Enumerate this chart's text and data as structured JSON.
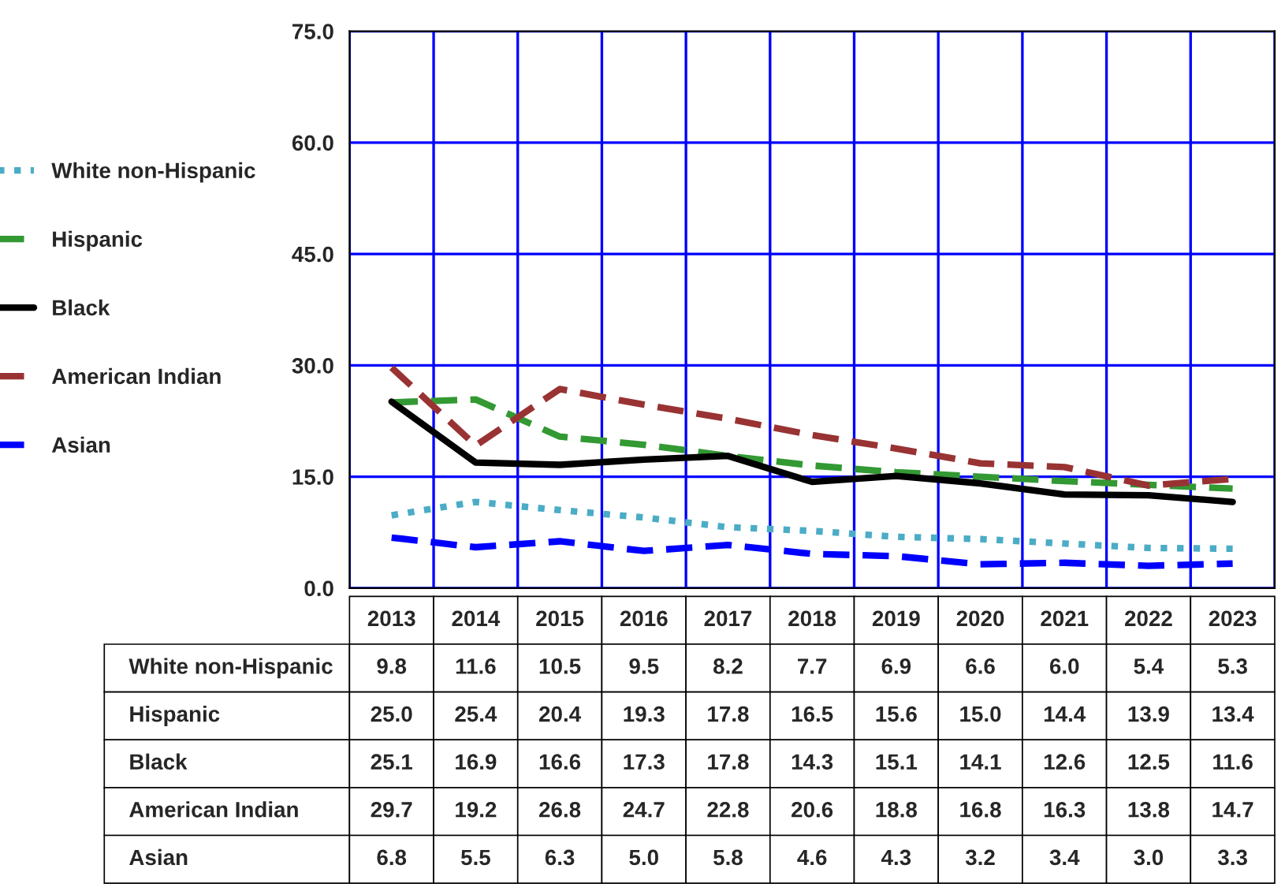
{
  "chart_data": {
    "type": "line",
    "categories": [
      "2013",
      "2014",
      "2015",
      "2016",
      "2017",
      "2018",
      "2019",
      "2020",
      "2021",
      "2022",
      "2023"
    ],
    "series": [
      {
        "name": "White non-Hispanic",
        "color": "#4bacc6",
        "line_style": "dotted",
        "values": [
          9.8,
          11.6,
          10.5,
          9.5,
          8.2,
          7.7,
          6.9,
          6.6,
          6.0,
          5.4,
          5.3
        ],
        "value_labels": [
          "9.8",
          "11.6",
          "10.5",
          "9.5",
          "8.2",
          "7.7",
          "6.9",
          "6.6",
          "6.0",
          "5.4",
          "5.3"
        ]
      },
      {
        "name": "Hispanic",
        "color": "#339933",
        "line_style": "dashed",
        "values": [
          25.0,
          25.4,
          20.4,
          19.3,
          17.8,
          16.5,
          15.6,
          15.0,
          14.4,
          13.9,
          13.4
        ],
        "value_labels": [
          "25.0",
          "25.4",
          "20.4",
          "19.3",
          "17.8",
          "16.5",
          "15.6",
          "15.0",
          "14.4",
          "13.9",
          "13.4"
        ]
      },
      {
        "name": "Black",
        "color": "#000000",
        "line_style": "solid",
        "values": [
          25.1,
          16.9,
          16.6,
          17.3,
          17.8,
          14.3,
          15.1,
          14.1,
          12.6,
          12.5,
          11.6
        ],
        "value_labels": [
          "25.1",
          "16.9",
          "16.6",
          "17.3",
          "17.8",
          "14.3",
          "15.1",
          "14.1",
          "12.6",
          "12.5",
          "11.6"
        ]
      },
      {
        "name": "American Indian",
        "color": "#993333",
        "line_style": "dashed",
        "values": [
          29.7,
          19.2,
          26.8,
          24.7,
          22.8,
          20.6,
          18.8,
          16.8,
          16.3,
          13.8,
          14.7
        ],
        "value_labels": [
          "29.7",
          "19.2",
          "26.8",
          "24.7",
          "22.8",
          "20.6",
          "18.8",
          "16.8",
          "16.3",
          "13.8",
          "14.7"
        ]
      },
      {
        "name": "Asian",
        "color": "#0000ff",
        "line_style": "dashed",
        "values": [
          6.8,
          5.5,
          6.3,
          5.0,
          5.8,
          4.6,
          4.3,
          3.2,
          3.4,
          3.0,
          3.3
        ],
        "value_labels": [
          "6.8",
          "5.5",
          "6.3",
          "5.0",
          "5.8",
          "4.6",
          "4.3",
          "3.2",
          "3.4",
          "3.0",
          "3.3"
        ]
      }
    ],
    "ylim": [
      0,
      75
    ],
    "yticks": [
      {
        "value": 0,
        "label": "0.0"
      },
      {
        "value": 15,
        "label": "15.0"
      },
      {
        "value": 30,
        "label": "30.0"
      },
      {
        "value": 45,
        "label": "45.0"
      },
      {
        "value": 60,
        "label": "60.0"
      },
      {
        "value": 75,
        "label": "75.0"
      }
    ],
    "grid": true,
    "legend": "left",
    "marker": "none"
  }
}
